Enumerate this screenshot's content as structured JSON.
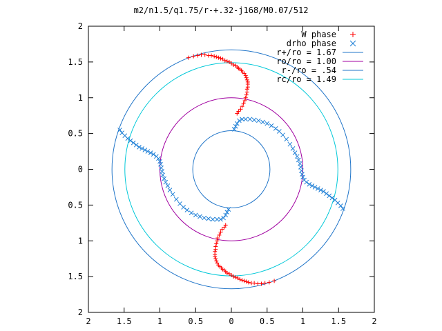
{
  "chart_data": {
    "type": "scatter",
    "title": "m2/n1.5/q1.75/r-+.32-j168/M0.07/512",
    "xlim": [
      -2,
      2
    ],
    "ylim": [
      -2,
      2
    ],
    "x_ticks": [
      -2,
      -1.5,
      -1,
      -0.5,
      0,
      0.5,
      1,
      1.5,
      2
    ],
    "x_tick_labels": [
      "2",
      "1.5",
      "1",
      "0.5",
      "0",
      "0.5",
      "1",
      "1.5",
      "2"
    ],
    "y_ticks": [
      2,
      1.5,
      1,
      0.5,
      0,
      -0.5,
      -1,
      -1.5,
      -2
    ],
    "y_tick_labels": [
      "2",
      "1.5",
      "1",
      "0.5",
      "0",
      "0.5",
      "1",
      "1.5",
      "2"
    ],
    "grid": false,
    "legend_position": "top-right",
    "series": [
      {
        "name": "W phase",
        "kind": "points",
        "marker": "+",
        "color": "#ff0000",
        "points": [
          [
            -0.6,
            1.56
          ],
          [
            -0.53,
            1.58
          ],
          [
            -0.47,
            1.59
          ],
          [
            -0.42,
            1.6
          ],
          [
            -0.37,
            1.6
          ],
          [
            -0.32,
            1.59
          ],
          [
            -0.28,
            1.59
          ],
          [
            -0.24,
            1.58
          ],
          [
            -0.21,
            1.57
          ],
          [
            -0.18,
            1.56
          ],
          [
            -0.15,
            1.55
          ],
          [
            -0.12,
            1.54
          ],
          [
            -0.09,
            1.52
          ],
          [
            -0.06,
            1.51
          ],
          [
            -0.03,
            1.5
          ],
          [
            0.0,
            1.48
          ],
          [
            0.03,
            1.46
          ],
          [
            0.06,
            1.45
          ],
          [
            0.08,
            1.43
          ],
          [
            0.1,
            1.41
          ],
          [
            0.12,
            1.4
          ],
          [
            0.14,
            1.38
          ],
          [
            0.16,
            1.36
          ],
          [
            0.18,
            1.34
          ],
          [
            0.2,
            1.31
          ],
          [
            0.21,
            1.28
          ],
          [
            0.22,
            1.25
          ],
          [
            0.23,
            1.22
          ],
          [
            0.23,
            1.19
          ],
          [
            0.23,
            1.15
          ],
          [
            0.22,
            1.12
          ],
          [
            0.22,
            1.08
          ],
          [
            0.21,
            1.04
          ],
          [
            0.2,
            1.0
          ],
          [
            0.19,
            0.96
          ],
          [
            0.17,
            0.92
          ],
          [
            0.15,
            0.88
          ],
          [
            0.13,
            0.84
          ],
          [
            0.1,
            0.81
          ],
          [
            0.08,
            0.78
          ],
          [
            0.6,
            -1.56
          ],
          [
            0.53,
            -1.58
          ],
          [
            0.47,
            -1.59
          ],
          [
            0.42,
            -1.6
          ],
          [
            0.37,
            -1.6
          ],
          [
            0.32,
            -1.59
          ],
          [
            0.28,
            -1.59
          ],
          [
            0.24,
            -1.58
          ],
          [
            0.21,
            -1.57
          ],
          [
            0.18,
            -1.56
          ],
          [
            0.15,
            -1.55
          ],
          [
            0.12,
            -1.54
          ],
          [
            0.09,
            -1.52
          ],
          [
            0.06,
            -1.51
          ],
          [
            0.03,
            -1.5
          ],
          [
            0.0,
            -1.48
          ],
          [
            -0.03,
            -1.46
          ],
          [
            -0.06,
            -1.45
          ],
          [
            -0.08,
            -1.43
          ],
          [
            -0.1,
            -1.41
          ],
          [
            -0.12,
            -1.4
          ],
          [
            -0.14,
            -1.38
          ],
          [
            -0.16,
            -1.36
          ],
          [
            -0.18,
            -1.34
          ],
          [
            -0.2,
            -1.31
          ],
          [
            -0.21,
            -1.28
          ],
          [
            -0.22,
            -1.25
          ],
          [
            -0.23,
            -1.22
          ],
          [
            -0.23,
            -1.19
          ],
          [
            -0.23,
            -1.15
          ],
          [
            -0.22,
            -1.12
          ],
          [
            -0.22,
            -1.08
          ],
          [
            -0.21,
            -1.04
          ],
          [
            -0.2,
            -1.0
          ],
          [
            -0.19,
            -0.96
          ],
          [
            -0.17,
            -0.92
          ],
          [
            -0.15,
            -0.88
          ],
          [
            -0.13,
            -0.84
          ],
          [
            -0.1,
            -0.81
          ],
          [
            -0.08,
            -0.78
          ]
        ]
      },
      {
        "name": "drho phase",
        "kind": "points",
        "marker": "x",
        "color": "#1e7fd6",
        "points": [
          [
            -1.56,
            0.55
          ],
          [
            -1.53,
            0.51
          ],
          [
            -1.49,
            0.47
          ],
          [
            -1.45,
            0.43
          ],
          [
            -1.41,
            0.4
          ],
          [
            -1.37,
            0.37
          ],
          [
            -1.33,
            0.34
          ],
          [
            -1.29,
            0.31
          ],
          [
            -1.25,
            0.29
          ],
          [
            -1.21,
            0.27
          ],
          [
            -1.17,
            0.25
          ],
          [
            -1.13,
            0.23
          ],
          [
            -1.09,
            0.21
          ],
          [
            -1.05,
            0.18
          ],
          [
            -1.02,
            0.15
          ],
          [
            -1.0,
            0.11
          ],
          [
            -0.99,
            0.07
          ],
          [
            -0.98,
            0.02
          ],
          [
            -0.97,
            -0.03
          ],
          [
            -0.96,
            -0.08
          ],
          [
            -0.94,
            -0.13
          ],
          [
            -0.92,
            -0.18
          ],
          [
            -0.89,
            -0.23
          ],
          [
            -0.86,
            -0.29
          ],
          [
            -0.82,
            -0.35
          ],
          [
            -0.77,
            -0.42
          ],
          [
            -0.72,
            -0.48
          ],
          [
            -0.67,
            -0.53
          ],
          [
            -0.62,
            -0.57
          ],
          [
            -0.56,
            -0.61
          ],
          [
            -0.5,
            -0.64
          ],
          [
            -0.44,
            -0.66
          ],
          [
            -0.38,
            -0.68
          ],
          [
            -0.32,
            -0.69
          ],
          [
            -0.26,
            -0.7
          ],
          [
            -0.2,
            -0.7
          ],
          [
            -0.15,
            -0.7
          ],
          [
            -0.11,
            -0.68
          ],
          [
            -0.08,
            -0.64
          ],
          [
            -0.06,
            -0.6
          ],
          [
            -0.04,
            -0.56
          ],
          [
            1.56,
            -0.55
          ],
          [
            1.53,
            -0.51
          ],
          [
            1.49,
            -0.47
          ],
          [
            1.45,
            -0.43
          ],
          [
            1.41,
            -0.4
          ],
          [
            1.37,
            -0.37
          ],
          [
            1.33,
            -0.34
          ],
          [
            1.29,
            -0.31
          ],
          [
            1.25,
            -0.29
          ],
          [
            1.21,
            -0.27
          ],
          [
            1.17,
            -0.25
          ],
          [
            1.13,
            -0.23
          ],
          [
            1.09,
            -0.21
          ],
          [
            1.05,
            -0.18
          ],
          [
            1.02,
            -0.15
          ],
          [
            1.0,
            -0.11
          ],
          [
            0.99,
            -0.07
          ],
          [
            0.98,
            -0.02
          ],
          [
            0.97,
            0.03
          ],
          [
            0.96,
            0.08
          ],
          [
            0.94,
            0.13
          ],
          [
            0.92,
            0.18
          ],
          [
            0.89,
            0.23
          ],
          [
            0.86,
            0.29
          ],
          [
            0.82,
            0.35
          ],
          [
            0.77,
            0.42
          ],
          [
            0.72,
            0.48
          ],
          [
            0.67,
            0.53
          ],
          [
            0.62,
            0.57
          ],
          [
            0.56,
            0.61
          ],
          [
            0.5,
            0.64
          ],
          [
            0.44,
            0.66
          ],
          [
            0.38,
            0.68
          ],
          [
            0.32,
            0.69
          ],
          [
            0.26,
            0.7
          ],
          [
            0.2,
            0.7
          ],
          [
            0.15,
            0.7
          ],
          [
            0.11,
            0.68
          ],
          [
            0.08,
            0.64
          ],
          [
            0.06,
            0.6
          ],
          [
            0.04,
            0.56
          ]
        ]
      },
      {
        "name": "r+/ro = 1.67",
        "kind": "circle",
        "radius": 1.67,
        "color": "#1f74c8"
      },
      {
        "name": "ro/ro = 1.00",
        "kind": "circle",
        "radius": 1.0,
        "color": "#a000a0"
      },
      {
        "name": "r-/ro = .54",
        "kind": "circle",
        "radius": 0.54,
        "color": "#1f74c8"
      },
      {
        "name": "rc/ro = 1.49",
        "kind": "circle",
        "radius": 1.49,
        "color": "#00c8d8"
      }
    ]
  }
}
